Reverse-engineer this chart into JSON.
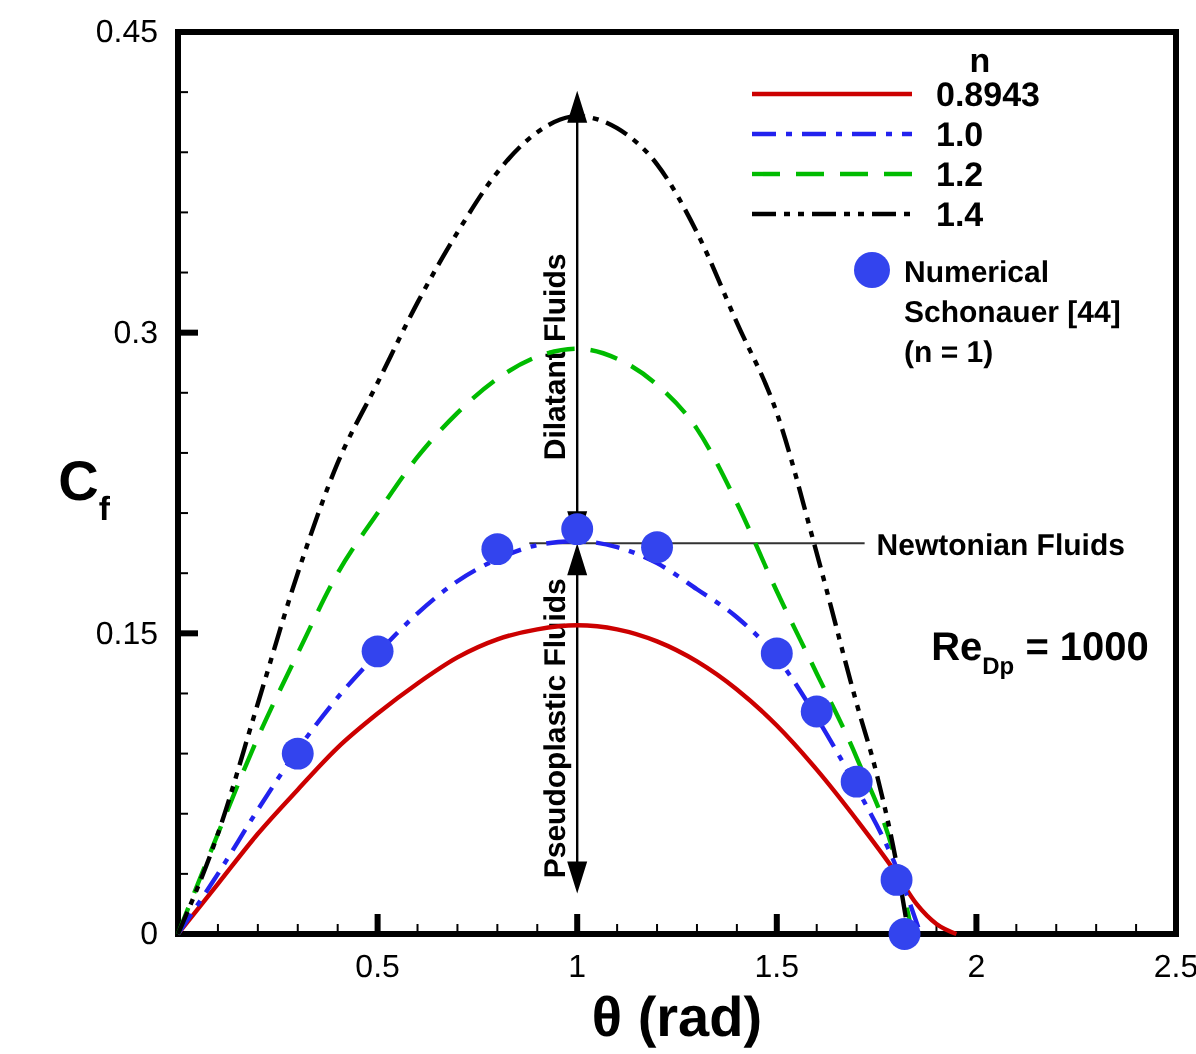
{
  "chart_data": {
    "type": "line",
    "xlabel": "θ (rad)",
    "ylabel": "C$_{f}$",
    "legend_title": "n",
    "legend": "top right",
    "grid": false,
    "xlim": [
      0,
      2.5
    ],
    "ylim": [
      0,
      0.45
    ],
    "xticks": [
      {
        "value": 0.1,
        "label": null
      },
      {
        "value": 0.2,
        "label": null
      },
      {
        "value": 0.3,
        "label": null
      },
      {
        "value": 0.4,
        "label": null
      },
      0.5,
      {
        "value": 0.6,
        "label": null
      },
      {
        "value": 0.7,
        "label": null
      },
      {
        "value": 0.8,
        "label": null
      },
      {
        "value": 0.9,
        "label": null
      },
      1,
      {
        "value": 1.1,
        "label": null
      },
      {
        "value": 1.2,
        "label": null
      },
      {
        "value": 1.3,
        "label": null
      },
      {
        "value": 1.4,
        "label": null
      },
      1.5,
      {
        "value": 1.6,
        "label": null
      },
      {
        "value": 1.7,
        "label": null
      },
      {
        "value": 1.8,
        "label": null
      },
      {
        "value": 1.9,
        "label": null
      },
      2,
      {
        "value": 2.1,
        "label": null
      },
      {
        "value": 2.2,
        "label": null
      },
      {
        "value": 2.3,
        "label": null
      },
      {
        "value": 2.4,
        "label": null
      },
      2.5
    ],
    "yticks": [
      0,
      {
        "value": 0.03,
        "label": null
      },
      {
        "value": 0.06,
        "label": null
      },
      {
        "value": 0.09,
        "label": null
      },
      {
        "value": 0.12,
        "label": null
      },
      0.15,
      {
        "value": 0.18,
        "label": null
      },
      {
        "value": 0.21,
        "label": null
      },
      {
        "value": 0.24,
        "label": null
      },
      {
        "value": 0.27,
        "label": null
      },
      0.3,
      {
        "value": 0.33,
        "label": null
      },
      {
        "value": 0.36,
        "label": null
      },
      {
        "value": 0.39,
        "label": null
      },
      {
        "value": 0.42,
        "label": null
      },
      0.45
    ],
    "series": [
      {
        "name": "0.8943",
        "color": "#cc0000",
        "line_style": "solid",
        "x": [
          0,
          0.1,
          0.2,
          0.3,
          0.4,
          0.5,
          0.6,
          0.7,
          0.8,
          0.9,
          1.0,
          1.1,
          1.2,
          1.3,
          1.4,
          1.5,
          1.6,
          1.7,
          1.8,
          1.85,
          1.9,
          1.95
        ],
        "values": [
          0,
          0.025,
          0.05,
          0.072,
          0.093,
          0.11,
          0.125,
          0.138,
          0.147,
          0.152,
          0.154,
          0.152,
          0.146,
          0.136,
          0.122,
          0.104,
          0.082,
          0.057,
          0.03,
          0.015,
          0.005,
          0
        ]
      },
      {
        "name": "1.0",
        "color": "#2222ee",
        "line_style": "dashdot",
        "x": [
          0,
          0.1,
          0.2,
          0.3,
          0.4,
          0.5,
          0.6,
          0.7,
          0.8,
          0.9,
          1.0,
          1.1,
          1.2,
          1.3,
          1.4,
          1.5,
          1.6,
          1.7,
          1.8,
          1.86
        ],
        "values": [
          0,
          0.03,
          0.062,
          0.092,
          0.118,
          0.14,
          0.16,
          0.176,
          0.187,
          0.194,
          0.196,
          0.193,
          0.185,
          0.172,
          0.158,
          0.138,
          0.108,
          0.073,
          0.033,
          0
        ]
      },
      {
        "name": "1.2",
        "color": "#00bb00",
        "line_style": "dashed",
        "x": [
          0,
          0.1,
          0.2,
          0.3,
          0.4,
          0.5,
          0.6,
          0.7,
          0.8,
          0.9,
          1.0,
          1.1,
          1.2,
          1.3,
          1.4,
          1.5,
          1.6,
          1.7,
          1.8,
          1.84
        ],
        "values": [
          0,
          0.05,
          0.098,
          0.14,
          0.18,
          0.21,
          0.238,
          0.26,
          0.277,
          0.288,
          0.292,
          0.287,
          0.274,
          0.252,
          0.215,
          0.171,
          0.13,
          0.088,
          0.035,
          0
        ]
      },
      {
        "name": "1.4",
        "color": "#000000",
        "line_style": "dashdotdot",
        "x": [
          0,
          0.1,
          0.2,
          0.3,
          0.4,
          0.5,
          0.6,
          0.7,
          0.8,
          0.9,
          1.0,
          1.1,
          1.2,
          1.3,
          1.4,
          1.5,
          1.6,
          1.7,
          1.75,
          1.8,
          1.83
        ],
        "values": [
          0,
          0.05,
          0.115,
          0.18,
          0.235,
          0.275,
          0.315,
          0.35,
          0.38,
          0.4,
          0.408,
          0.402,
          0.384,
          0.35,
          0.305,
          0.26,
          0.19,
          0.115,
          0.08,
          0.035,
          0
        ]
      },
      {
        "name": "Numerical Schonauer [44] (n = 1)",
        "type": "scatter",
        "marker": "circle",
        "color": "#3344ee",
        "x": [
          0.3,
          0.5,
          0.8,
          1.0,
          1.2,
          1.5,
          1.6,
          1.7,
          1.8,
          1.82
        ],
        "values": [
          0.09,
          0.141,
          0.192,
          0.202,
          0.193,
          0.14,
          0.111,
          0.076,
          0.027,
          0
        ]
      }
    ],
    "ref_lines": [
      {
        "axis": "y",
        "value": 0.195,
        "label": "Newtonian Fluids",
        "color": "#333333"
      }
    ],
    "annotations": [
      "Dilatant Fluids",
      "Pseudoplastic Fluids",
      "Re$_{Dp}$ = 1000"
    ]
  }
}
